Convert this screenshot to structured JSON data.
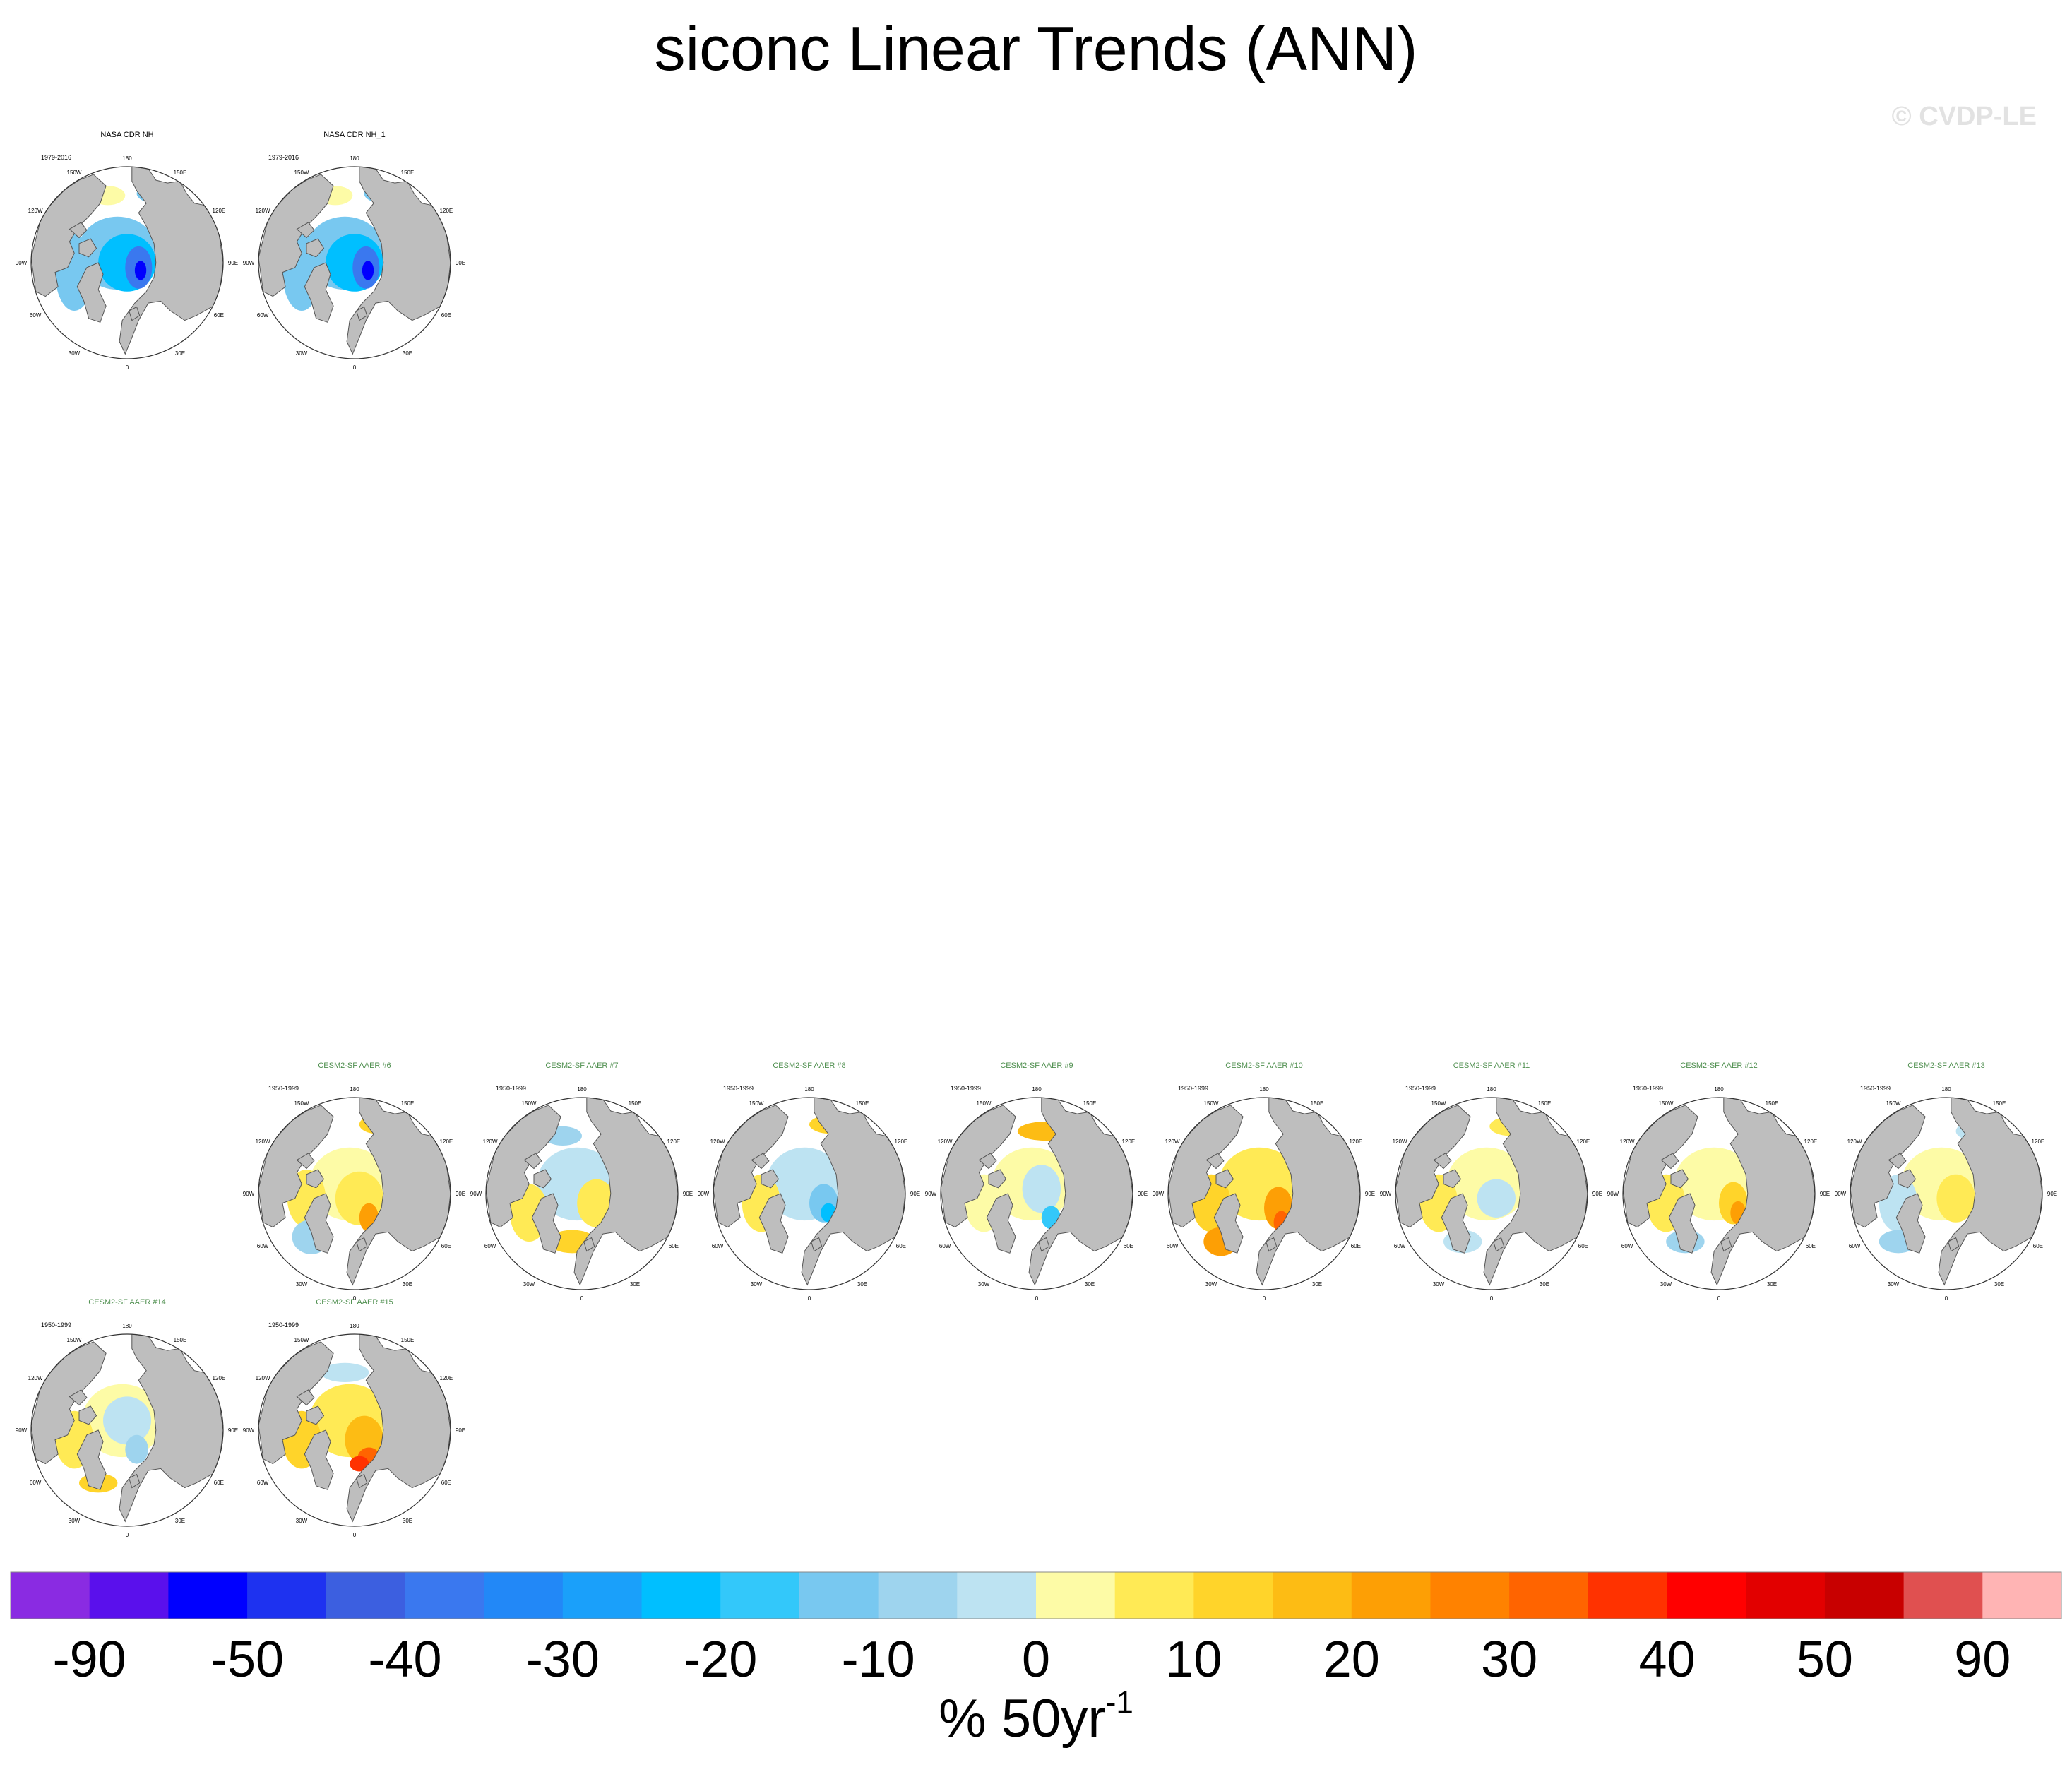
{
  "figure": {
    "title": "siconc Linear Trends (ANN)",
    "copyright": "© CVDP-LE"
  },
  "chart_data": {
    "type": "heatmap",
    "projection": "north-polar-stereographic",
    "variable": "siconc",
    "season": "ANN",
    "longitude_labels": [
      "180",
      "150E",
      "120E",
      "90E",
      "60E",
      "30E",
      "0",
      "30W",
      "60W",
      "90W",
      "120W",
      "150W"
    ],
    "panels": [
      {
        "title": "NASA CDR NH",
        "period": "1979-2016",
        "title_color": "#000000",
        "pattern": "obs"
      },
      {
        "title": "NASA CDR NH_1",
        "period": "1979-2016",
        "title_color": "#000000",
        "pattern": "obs"
      },
      {
        "title": "CESM2-SF AAER #6",
        "period": "1950-1999",
        "title_color": "#4f8f4f",
        "pattern": "m6"
      },
      {
        "title": "CESM2-SF AAER #7",
        "period": "1950-1999",
        "title_color": "#4f8f4f",
        "pattern": "m7"
      },
      {
        "title": "CESM2-SF AAER #8",
        "period": "1950-1999",
        "title_color": "#4f8f4f",
        "pattern": "m8"
      },
      {
        "title": "CESM2-SF AAER #9",
        "period": "1950-1999",
        "title_color": "#4f8f4f",
        "pattern": "m9"
      },
      {
        "title": "CESM2-SF AAER #10",
        "period": "1950-1999",
        "title_color": "#4f8f4f",
        "pattern": "m10"
      },
      {
        "title": "CESM2-SF AAER #11",
        "period": "1950-1999",
        "title_color": "#4f8f4f",
        "pattern": "m11"
      },
      {
        "title": "CESM2-SF AAER #12",
        "period": "1950-1999",
        "title_color": "#4f8f4f",
        "pattern": "m12"
      },
      {
        "title": "CESM2-SF AAER #13",
        "period": "1950-1999",
        "title_color": "#4f8f4f",
        "pattern": "m13"
      },
      {
        "title": "CESM2-SF AAER #14",
        "period": "1950-1999",
        "title_color": "#4f8f4f",
        "pattern": "m14"
      },
      {
        "title": "CESM2-SF AAER #15",
        "period": "1950-1999",
        "title_color": "#4f8f4f",
        "pattern": "m15"
      }
    ],
    "colorbar": {
      "unit_main": "% 50yr",
      "unit_exp": "-1",
      "tick_labels": [
        "-90",
        "-50",
        "-40",
        "-30",
        "-20",
        "-10",
        "0",
        "10",
        "20",
        "30",
        "40",
        "50",
        "90"
      ],
      "colors": [
        "#8a2be2",
        "#5a10ec",
        "#0000ff",
        "#1e32f0",
        "#3c5fe0",
        "#3a78ef",
        "#2288f7",
        "#1aa0fa",
        "#00bfff",
        "#33c8fa",
        "#78c8f0",
        "#9ed4ee",
        "#bde3f2",
        "#fdfba6",
        "#ffea55",
        "#ffd42a",
        "#fdbc14",
        "#fd9f05",
        "#ff8200",
        "#ff6400",
        "#ff3200",
        "#ff0000",
        "#e20000",
        "#c80000",
        "#e05050",
        "#ffb4b4"
      ]
    }
  }
}
